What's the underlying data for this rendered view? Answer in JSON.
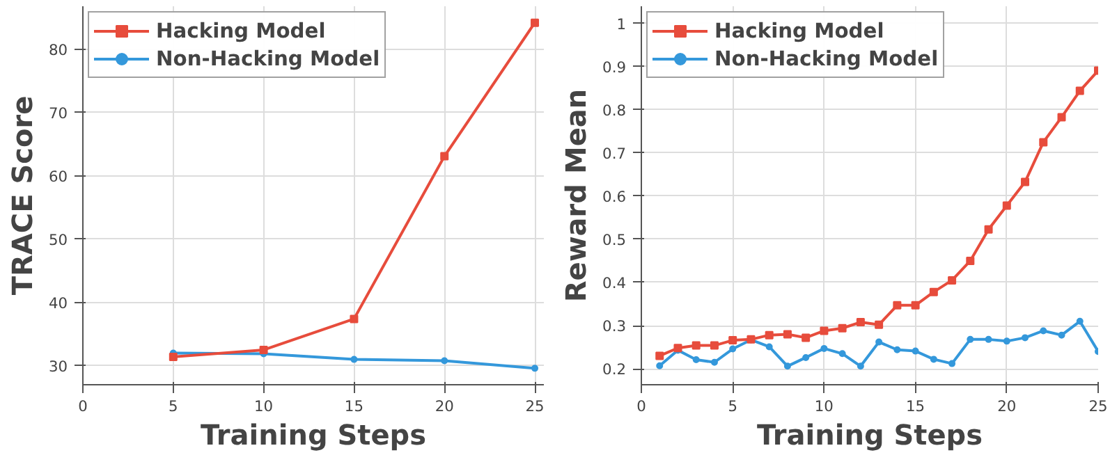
{
  "chart_data": [
    {
      "type": "line",
      "xlabel": "Training Steps",
      "ylabel": "TRACE Score",
      "x": [
        5,
        10,
        15,
        20,
        25
      ],
      "xlim": [
        0,
        25.5
      ],
      "xticks": [
        0,
        5,
        10,
        15,
        20,
        25
      ],
      "ylim": [
        27,
        86.8
      ],
      "yticks": [
        30,
        40,
        50,
        60,
        70,
        80
      ],
      "grid": true,
      "legend": "top left",
      "series": [
        {
          "name": "Hacking Model",
          "color": "#e74c3c",
          "marker": "square",
          "values": [
            31.4,
            32.5,
            37.4,
            63.1,
            84.2
          ]
        },
        {
          "name": "Non-Hacking Model",
          "color": "#3498db",
          "marker": "circle",
          "values": [
            32.0,
            31.9,
            31.0,
            30.8,
            29.6
          ]
        }
      ]
    },
    {
      "type": "line",
      "xlabel": "Training Steps",
      "ylabel": "Reward Mean",
      "x": [
        1,
        2,
        3,
        4,
        5,
        6,
        7,
        8,
        9,
        10,
        11,
        12,
        13,
        14,
        15,
        16,
        17,
        18,
        19,
        20,
        21,
        22,
        23,
        24,
        25
      ],
      "xlim": [
        0,
        25
      ],
      "xticks": [
        0,
        5,
        10,
        15,
        20,
        25
      ],
      "ylim": [
        0.163,
        1.04
      ],
      "yticks": [
        0.2,
        0.3,
        0.4,
        0.5,
        0.6,
        0.7,
        0.8,
        0.9,
        1.0
      ],
      "grid": true,
      "legend": "top left",
      "series": [
        {
          "name": "Hacking Model",
          "color": "#e74c3c",
          "marker": "square",
          "values": [
            0.23,
            0.248,
            0.254,
            0.254,
            0.266,
            0.268,
            0.278,
            0.28,
            0.272,
            0.288,
            0.294,
            0.308,
            0.302,
            0.347,
            0.347,
            0.378,
            0.405,
            0.45,
            0.523,
            0.578,
            0.633,
            0.725,
            0.783,
            0.844,
            0.891
          ]
        },
        {
          "name": "Non-Hacking Model",
          "color": "#3498db",
          "marker": "circle",
          "values": [
            0.207,
            0.243,
            0.221,
            0.215,
            0.246,
            0.267,
            0.251,
            0.206,
            0.226,
            0.247,
            0.235,
            0.206,
            0.262,
            0.244,
            0.241,
            0.222,
            0.212,
            0.268,
            0.268,
            0.264,
            0.272,
            0.288,
            0.278,
            0.31,
            0.24
          ]
        }
      ]
    }
  ]
}
